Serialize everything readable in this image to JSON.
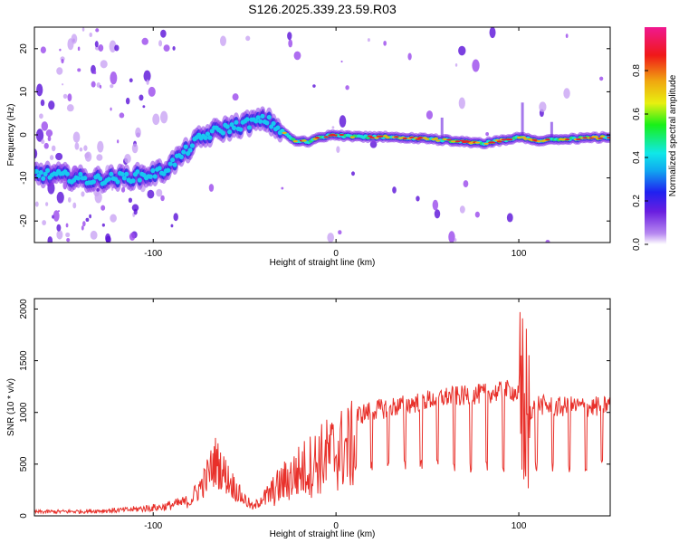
{
  "title": "S126.2025.339.23.59.R03",
  "colors": {
    "snr_line": "#e8302a",
    "ridge_high": "#e8202a",
    "ridge_mid": "#18d8f0",
    "speckle": "#8a3ae8"
  },
  "chart_data": [
    {
      "type": "heatmap",
      "xlabel": "Height of straight line (km)",
      "ylabel": "Frequency (Hz)",
      "xlim": [
        -165,
        150
      ],
      "ylim": [
        -25,
        25
      ],
      "xticks": [
        -100,
        0,
        100
      ],
      "yticks": [
        -20,
        -10,
        0,
        10,
        20
      ],
      "colorbar": {
        "label": "Normalized spectral amplitude",
        "range": [
          0,
          1
        ],
        "ticks": [
          0.0,
          0.2,
          0.4,
          0.6,
          0.8
        ]
      },
      "ridge": [
        [
          -165,
          -9
        ],
        [
          -150,
          -9.5
        ],
        [
          -135,
          -10.5
        ],
        [
          -120,
          -10
        ],
        [
          -105,
          -9.5
        ],
        [
          -95,
          -8.5
        ],
        [
          -85,
          -5
        ],
        [
          -75,
          -1
        ],
        [
          -65,
          1
        ],
        [
          -55,
          2
        ],
        [
          -45,
          3
        ],
        [
          -38,
          3.5
        ],
        [
          -30,
          1
        ],
        [
          -22,
          -1.5
        ],
        [
          -15,
          -1.5
        ],
        [
          -8,
          -0.5
        ],
        [
          -2,
          0
        ],
        [
          10,
          -0.5
        ],
        [
          30,
          -0.5
        ],
        [
          50,
          -1
        ],
        [
          70,
          -1.5
        ],
        [
          80,
          -2
        ],
        [
          88,
          -1.5
        ],
        [
          95,
          -1
        ],
        [
          100,
          -0.5
        ],
        [
          110,
          -1.5
        ],
        [
          125,
          -1
        ],
        [
          150,
          -0.5
        ]
      ],
      "spikes": [
        [
          102,
          7.5
        ],
        [
          58,
          4
        ],
        [
          118,
          3
        ],
        [
          -40,
          6
        ]
      ]
    },
    {
      "type": "line",
      "xlabel": "Height of straight line (km)",
      "ylabel": "SNR (10 * v/v)",
      "xlim": [
        -165,
        150
      ],
      "ylim": [
        0,
        2100
      ],
      "xticks": [
        -100,
        0,
        100
      ],
      "yticks": [
        0,
        500,
        1000,
        1500,
        2000
      ],
      "series": [
        {
          "x": [
            -165,
            -140,
            -115,
            -95,
            -80,
            -72,
            -66,
            -60,
            -52,
            -45,
            -38,
            -30,
            -22,
            -15,
            -8,
            0,
            10,
            20,
            30,
            40,
            50,
            60,
            70,
            80,
            90,
            95,
            100,
            103,
            106,
            110,
            120,
            130,
            140,
            150
          ],
          "values": [
            40,
            45,
            60,
            90,
            150,
            350,
            560,
            400,
            200,
            80,
            250,
            420,
            560,
            660,
            760,
            860,
            940,
            1000,
            1030,
            1060,
            1100,
            1130,
            1140,
            1160,
            1180,
            1200,
            1150,
            2080,
            1000,
            1060,
            1030,
            1040,
            1030,
            1060
          ]
        }
      ]
    }
  ]
}
